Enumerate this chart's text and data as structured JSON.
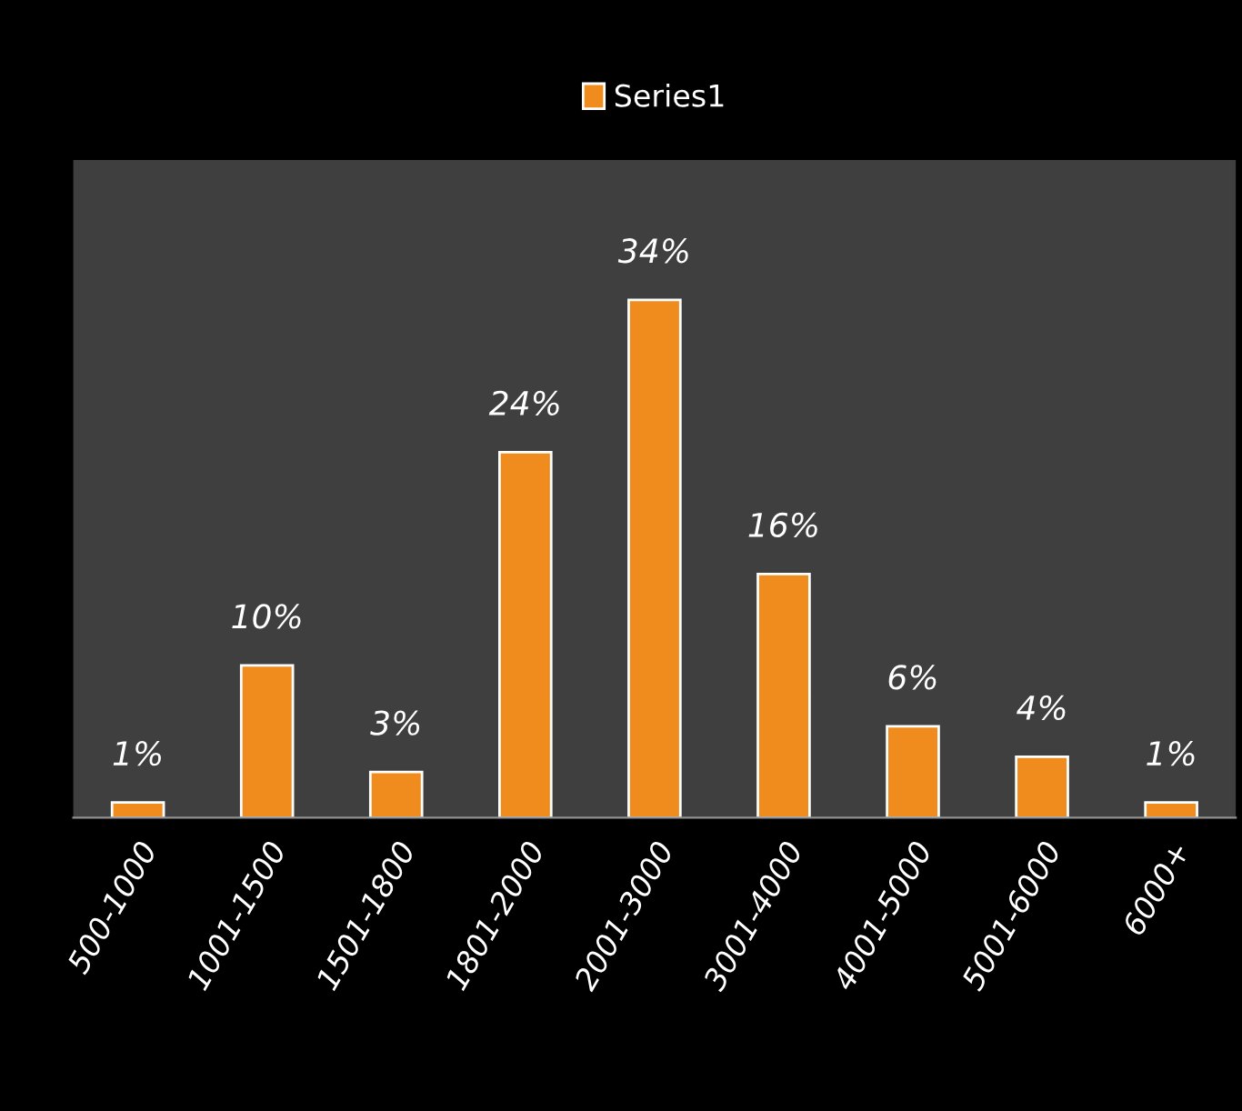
{
  "chart_data": {
    "type": "bar",
    "categories": [
      "500-1000",
      "1001-1500",
      "1501-1800",
      "1801-2000",
      "2001-3000",
      "3001-4000",
      "4001-5000",
      "5001-6000",
      "6000+"
    ],
    "series": [
      {
        "name": "Series1",
        "color": "#f08c1e",
        "values": [
          1,
          10,
          3,
          24,
          34,
          16,
          6,
          4,
          1
        ],
        "value_labels": [
          "1%",
          "10%",
          "3%",
          "24%",
          "34%",
          "16%",
          "6%",
          "4%",
          "1%"
        ]
      }
    ],
    "legend": "top",
    "grid": false
  }
}
